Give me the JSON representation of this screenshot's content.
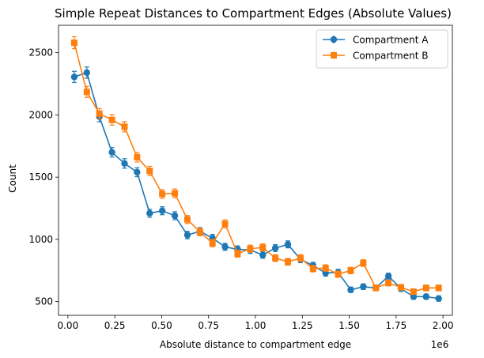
{
  "chart_data": {
    "type": "line",
    "title": "Simple Repeat Distances to Compartment Edges (Absolute Values)",
    "xlabel": "Absolute distance to compartment edge",
    "ylabel": "Count",
    "x_offset_label": "1e6",
    "xlim": [
      -0.05,
      2.05
    ],
    "ylim": [
      390,
      2720
    ],
    "x_ticks": [
      0.0,
      0.25,
      0.5,
      0.75,
      1.0,
      1.25,
      1.5,
      1.75,
      2.0
    ],
    "x_tick_labels": [
      "0.00",
      "0.25",
      "0.50",
      "0.75",
      "1.00",
      "1.25",
      "1.50",
      "1.75",
      "2.00"
    ],
    "y_ticks": [
      500,
      1000,
      1500,
      2000,
      2500
    ],
    "y_tick_labels": [
      "500",
      "1000",
      "1500",
      "2000",
      "2500"
    ],
    "legend_position": "top-right",
    "x": [
      0.034,
      0.101,
      0.168,
      0.235,
      0.302,
      0.369,
      0.436,
      0.503,
      0.57,
      0.637,
      0.704,
      0.771,
      0.838,
      0.905,
      0.972,
      1.039,
      1.106,
      1.173,
      1.24,
      1.307,
      1.374,
      1.441,
      1.508,
      1.575,
      1.642,
      1.709,
      1.776,
      1.843,
      1.91,
      1.977
    ],
    "series": [
      {
        "name": "Compartment A",
        "color": "#1f77b4",
        "marker": "circle",
        "values": [
          2305,
          2340,
          1985,
          1700,
          1610,
          1540,
          1210,
          1230,
          1190,
          1035,
          1065,
          1010,
          940,
          920,
          915,
          875,
          930,
          960,
          840,
          790,
          730,
          735,
          595,
          620,
          610,
          705,
          605,
          540,
          540,
          525
        ],
        "errors": [
          45,
          45,
          40,
          38,
          38,
          36,
          32,
          32,
          32,
          30,
          30,
          30,
          28,
          28,
          28,
          27,
          28,
          28,
          27,
          26,
          25,
          25,
          22,
          23,
          23,
          24,
          23,
          21,
          21,
          21
        ]
      },
      {
        "name": "Compartment B",
        "color": "#ff7f0e",
        "marker": "square",
        "values": [
          2580,
          2185,
          2010,
          1960,
          1905,
          1660,
          1550,
          1365,
          1370,
          1160,
          1060,
          970,
          1125,
          885,
          925,
          935,
          850,
          820,
          850,
          765,
          770,
          720,
          750,
          810,
          610,
          650,
          615,
          580,
          610,
          610
        ],
        "errors": [
          48,
          44,
          42,
          42,
          41,
          38,
          37,
          35,
          35,
          32,
          31,
          29,
          32,
          28,
          29,
          29,
          27,
          27,
          27,
          26,
          26,
          25,
          26,
          27,
          23,
          24,
          23,
          22,
          23,
          23
        ]
      }
    ]
  }
}
